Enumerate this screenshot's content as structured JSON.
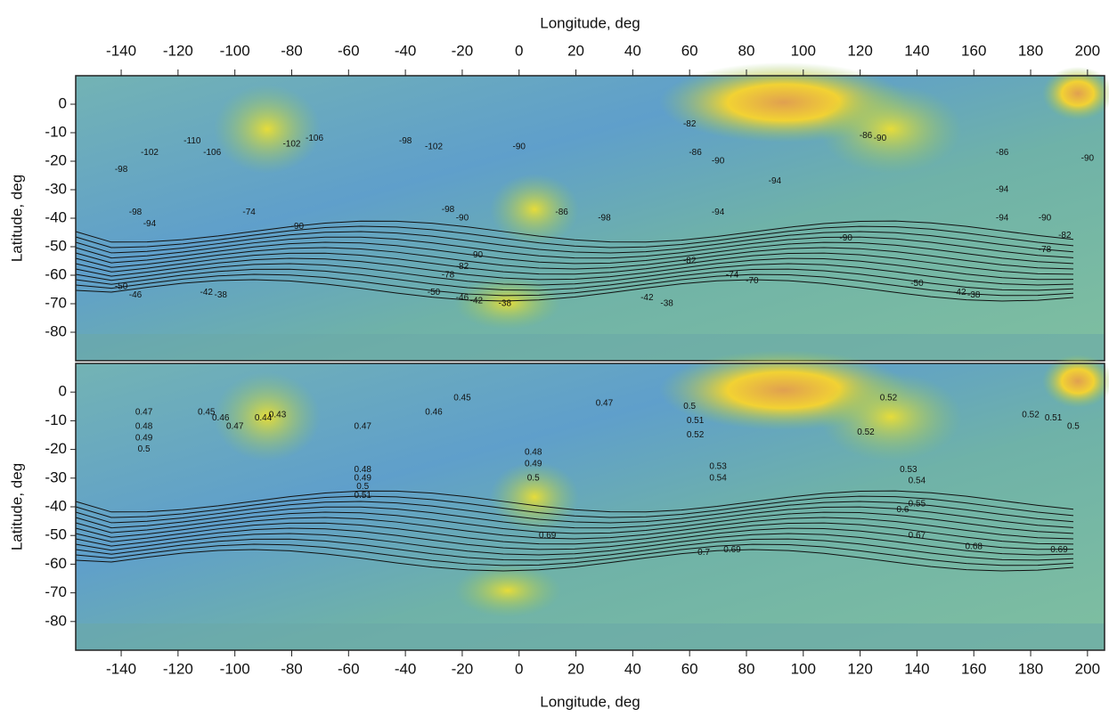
{
  "chart_data": [
    {
      "type": "contour",
      "xlabel": "Longitude, deg",
      "ylabel": "Latitude, deg",
      "xlim": [
        -156,
        206
      ],
      "ylim": [
        -90,
        10
      ],
      "xticks": [
        -140,
        -120,
        -100,
        -80,
        -60,
        -40,
        -20,
        0,
        20,
        40,
        60,
        80,
        100,
        120,
        140,
        160,
        180,
        200
      ],
      "yticks": [
        0,
        -10,
        -20,
        -30,
        -40,
        -50,
        -60,
        -70,
        -80
      ],
      "contour_labels": {
        "x": [
          -115,
          -108,
          -130,
          -80,
          -72,
          -140,
          -135,
          -130,
          -95,
          -78,
          -40,
          -30,
          0,
          60,
          62,
          70,
          122,
          127,
          90,
          -25,
          -20,
          15,
          30,
          70,
          115,
          60,
          -15,
          -20,
          -25,
          75,
          82,
          45,
          52,
          -30,
          -20,
          -110,
          -105,
          -140,
          -135,
          -5,
          -15,
          140,
          155,
          160,
          185,
          192,
          200,
          185,
          170,
          170,
          170
        ],
        "y": [
          -13,
          -17,
          -17,
          -14,
          -12,
          -23,
          -38,
          -42,
          -38,
          -43,
          -13,
          -15,
          -15,
          -7,
          -17,
          -20,
          -11,
          -12,
          -27,
          -37,
          -40,
          -38,
          -40,
          -38,
          -47,
          -55,
          -53,
          -57,
          -60,
          -60,
          -62,
          -68,
          -70,
          -66,
          -68,
          -66,
          -67,
          -64,
          -67,
          -70,
          -69,
          -63,
          -66,
          -67,
          -51,
          -46,
          -19,
          -40,
          -40,
          -30,
          -17
        ],
        "values": [
          -110,
          -106,
          -102,
          -102,
          -106,
          -98,
          -98,
          -94,
          -74,
          -90,
          -98,
          -102,
          -90,
          -82,
          -86,
          -90,
          -86,
          -90,
          -94,
          -98,
          -90,
          -86,
          -98,
          -94,
          -90,
          -82,
          -90,
          -82,
          -78,
          -74,
          -70,
          -42,
          -38,
          -50,
          -46,
          -42,
          -38,
          -50,
          -46,
          -38,
          -42,
          -50,
          -42,
          -38,
          -78,
          -82,
          -90,
          -90,
          -94,
          -94,
          -86
        ]
      }
    },
    {
      "type": "contour",
      "xlabel": "Longitude, deg",
      "ylabel": "Latitude, deg",
      "xlim": [
        -156,
        206
      ],
      "ylim": [
        -90,
        10
      ],
      "xticks": [
        -140,
        -120,
        -100,
        -80,
        -60,
        -40,
        -20,
        0,
        20,
        40,
        60,
        80,
        100,
        120,
        140,
        160,
        180,
        200
      ],
      "yticks": [
        0,
        -10,
        -20,
        -30,
        -40,
        -50,
        -60,
        -70,
        -80
      ],
      "contour_labels": {
        "x": [
          -132,
          -132,
          -132,
          -132,
          -110,
          -105,
          -100,
          -85,
          -90,
          -20,
          -30,
          -55,
          5,
          5,
          5,
          -55,
          -55,
          -55,
          -55,
          30,
          60,
          62,
          62,
          70,
          70,
          130,
          122,
          137,
          140,
          140,
          135,
          10,
          65,
          75,
          160,
          190,
          180,
          188,
          195,
          140
        ],
        "y": [
          -7,
          -12,
          -16,
          -20,
          -7,
          -9,
          -12,
          -8,
          -9,
          -2,
          -7,
          -12,
          -21,
          -25,
          -30,
          -27,
          -30,
          -33,
          -36,
          -4,
          -5,
          -10,
          -15,
          -26,
          -30,
          -2,
          -14,
          -27,
          -31,
          -39,
          -41,
          -50,
          -56,
          -55,
          -54,
          -55,
          -8,
          -9,
          -12,
          -50
        ],
        "values": [
          0.47,
          0.48,
          0.49,
          0.5,
          0.45,
          0.46,
          0.47,
          0.43,
          0.44,
          0.45,
          0.46,
          0.47,
          0.48,
          0.49,
          0.5,
          0.48,
          0.49,
          0.5,
          0.51,
          0.47,
          0.5,
          0.51,
          0.52,
          0.53,
          0.54,
          0.52,
          0.52,
          0.53,
          0.54,
          0.55,
          0.6,
          0.69,
          0.7,
          0.69,
          0.68,
          0.69,
          0.52,
          0.51,
          0.5,
          0.67
        ]
      }
    }
  ]
}
